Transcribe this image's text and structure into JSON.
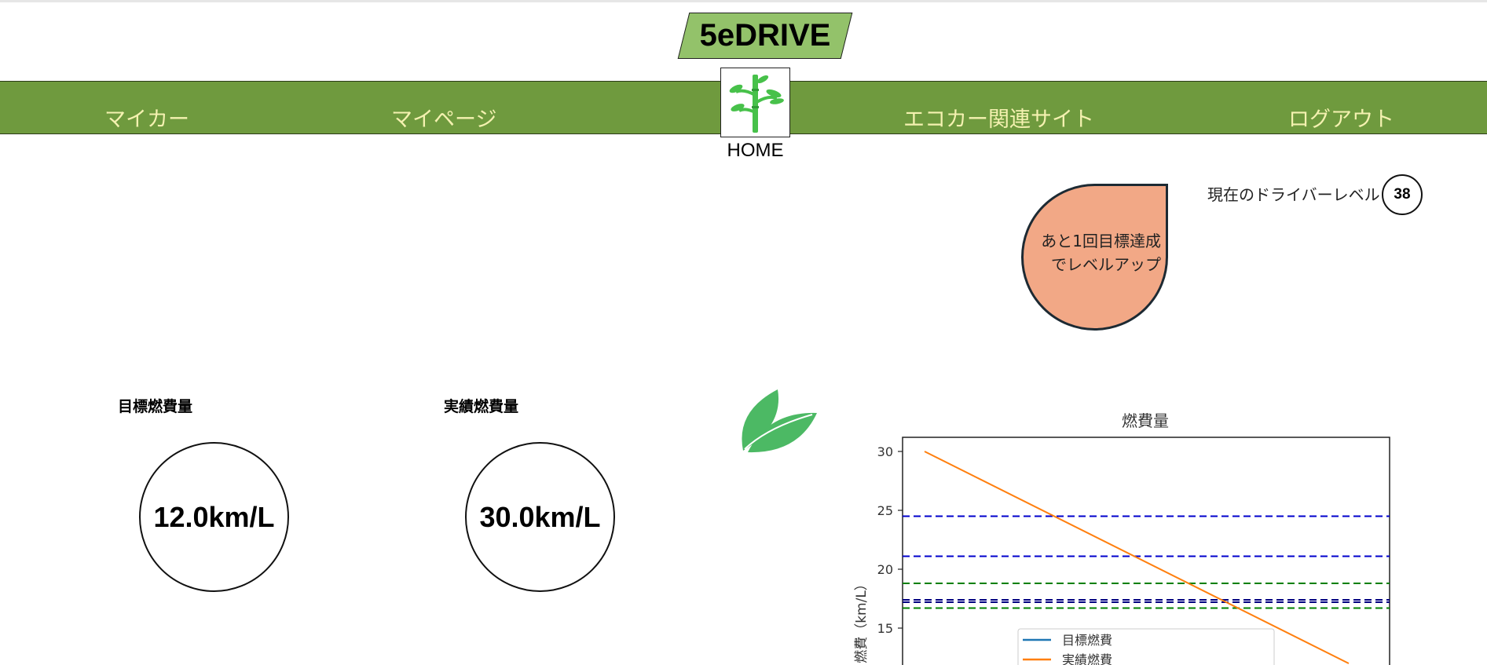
{
  "brand": {
    "title": "5eDRIVE"
  },
  "nav": {
    "items": [
      {
        "label": "マイカー"
      },
      {
        "label": "マイページ"
      },
      {
        "label": "エコカー関連サイト"
      },
      {
        "label": "ログアウト"
      }
    ],
    "home_label": "HOME",
    "home_icon": "bamboo-icon"
  },
  "level": {
    "bubble_line1": "あと1回目標達成",
    "bubble_line2": "でレベルアップ",
    "label": "現在のドライバーレベル",
    "value": "38"
  },
  "fuel": {
    "target_title": "目標燃費量",
    "target_value": "12.0km/L",
    "actual_title": "実績燃費量",
    "actual_value": "30.0km/L"
  },
  "decor": {
    "leaf_icon": "leaf-icon"
  },
  "colors": {
    "nav_bg": "#6f9a3e",
    "nav_text": "#f4f1b0",
    "brand_bg": "#93c26a",
    "bubble": "#f2a886",
    "leaf": "#4cb964",
    "target_line": "#1f77b4",
    "actual_line": "#ff7f0e",
    "blue_dash": "#0000cc",
    "green_dash": "#008000",
    "navy_dash": "#000080"
  },
  "chart_data": {
    "type": "line",
    "title": "燃費量",
    "ylabel": "燃費（km/L）",
    "ylim": [
      11.2,
      31.2
    ],
    "yticks": [
      15,
      20,
      25,
      30
    ],
    "series": [
      {
        "name": "目標燃費",
        "values": []
      },
      {
        "name": "実績燃費",
        "points": [
          [
            0,
            30
          ],
          [
            1,
            12
          ]
        ]
      }
    ],
    "reference_lines": [
      {
        "y": 24.5,
        "color": "#0000cc"
      },
      {
        "y": 21.1,
        "color": "#0000cc"
      },
      {
        "y": 18.8,
        "color": "#008000"
      },
      {
        "y": 17.4,
        "color": "#000080"
      },
      {
        "y": 17.2,
        "color": "#000080"
      },
      {
        "y": 16.7,
        "color": "#008000"
      }
    ],
    "legend_placement": "lower-center",
    "grid": false
  }
}
